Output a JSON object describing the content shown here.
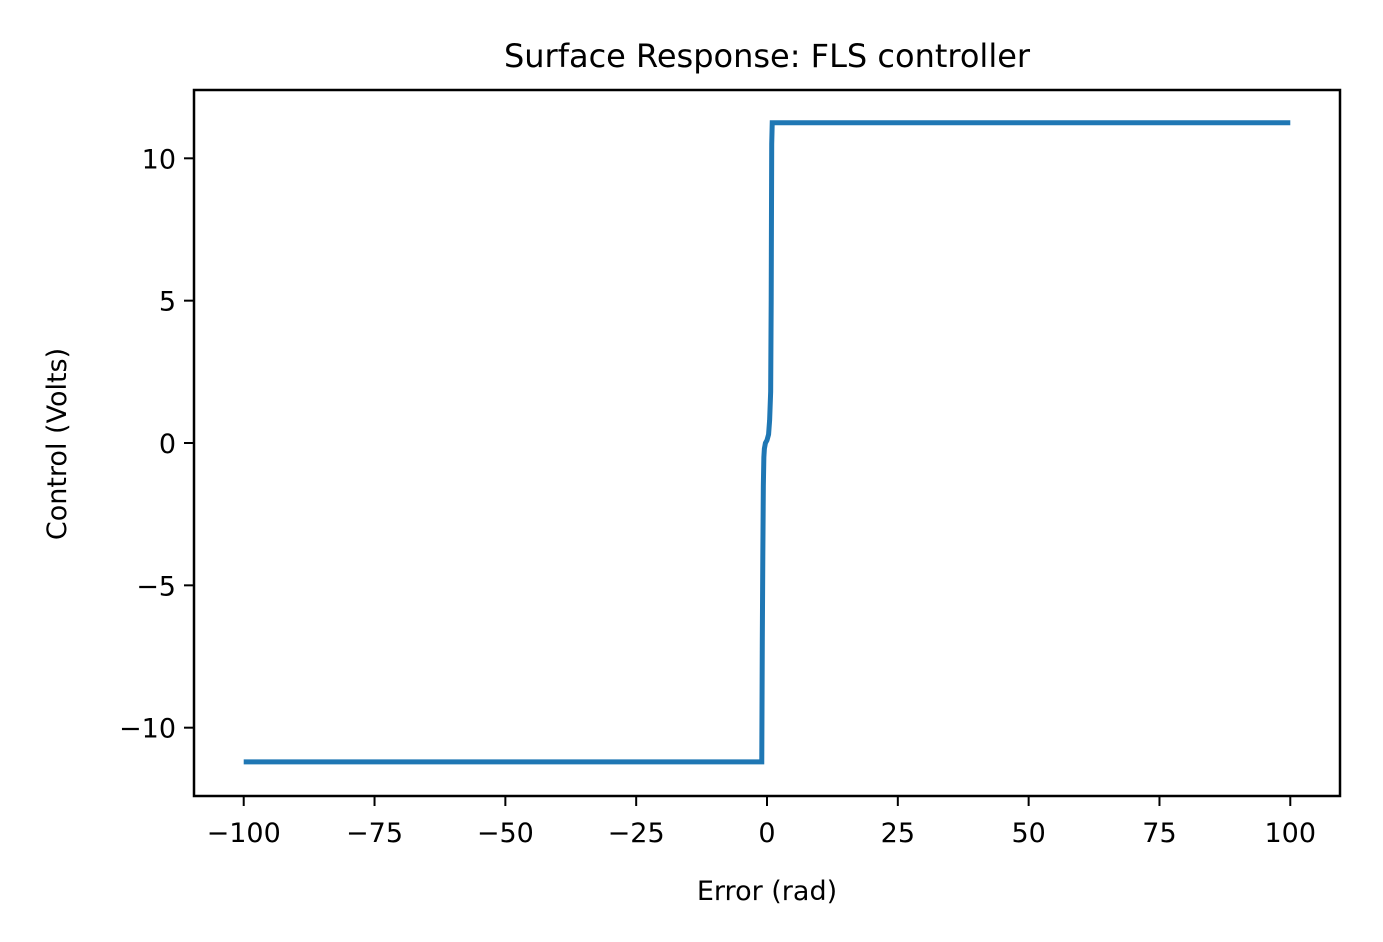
{
  "chart_data": {
    "type": "line",
    "title": "Surface Response: FLS controller",
    "xlabel": "Error (rad)",
    "ylabel": "Control (Volts)",
    "xlim": [
      -109.5,
      109.5
    ],
    "ylim": [
      -12.4,
      12.4
    ],
    "grid": false,
    "color": "#1f77b4",
    "xticks": [
      {
        "value": -100,
        "label": "−100"
      },
      {
        "value": -75,
        "label": "−75"
      },
      {
        "value": -50,
        "label": "−50"
      },
      {
        "value": -25,
        "label": "−25"
      },
      {
        "value": 0,
        "label": "0"
      },
      {
        "value": 25,
        "label": "25"
      },
      {
        "value": 50,
        "label": "50"
      },
      {
        "value": 75,
        "label": "75"
      },
      {
        "value": 100,
        "label": "100"
      }
    ],
    "yticks": [
      {
        "value": -10,
        "label": "−10"
      },
      {
        "value": -5,
        "label": "−5"
      },
      {
        "value": 0,
        "label": "0"
      },
      {
        "value": 5,
        "label": "5"
      },
      {
        "value": 10,
        "label": "10"
      }
    ],
    "series": [
      {
        "x": [
          -100,
          -1.0,
          -0.9,
          -0.8,
          -0.7,
          -0.6,
          -0.5,
          -0.3,
          0.0,
          0.3,
          0.5,
          0.7,
          0.8,
          0.9,
          1.0,
          100
        ],
        "y": [
          -11.2,
          -11.2,
          -7.0,
          -4.0,
          -1.5,
          -0.5,
          -0.2,
          0.0,
          0.1,
          0.3,
          0.8,
          1.8,
          5.0,
          10.5,
          11.25,
          11.25
        ]
      }
    ]
  }
}
